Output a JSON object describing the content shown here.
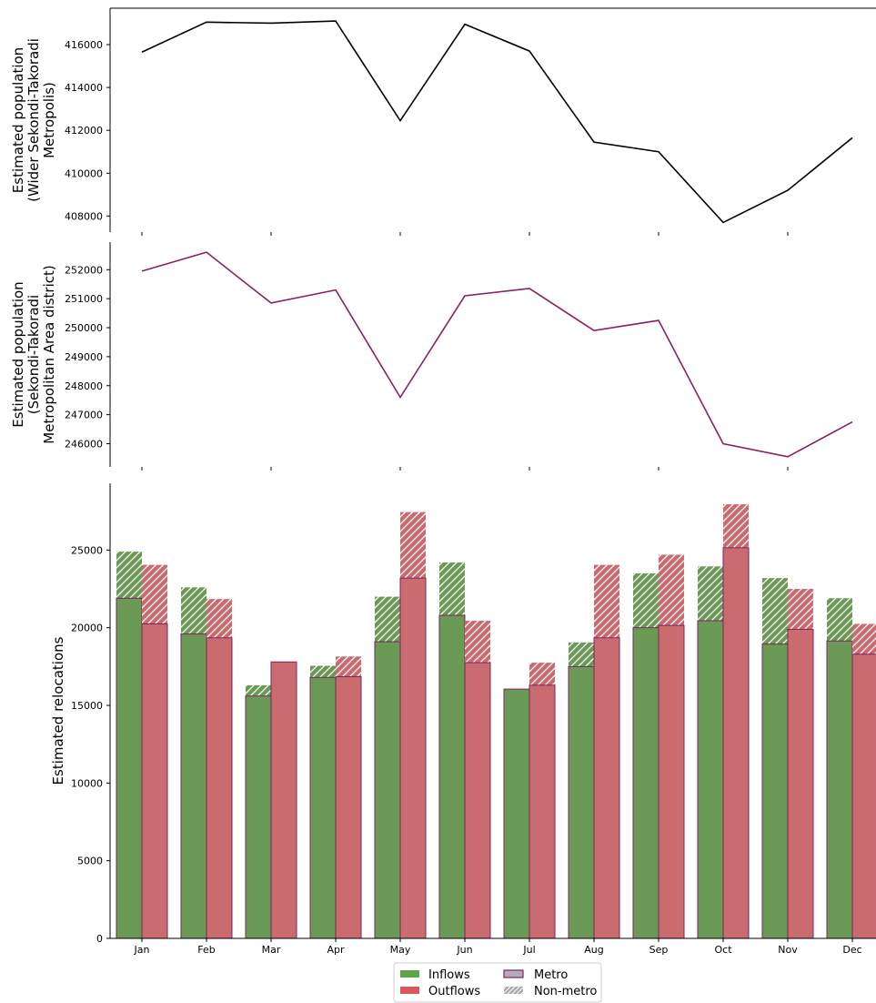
{
  "chart_data": [
    {
      "type": "line",
      "xlabel": "",
      "ylabel": [
        "Estimated population",
        "(Wider Sekondi-Takoradi",
        "Metropolis)"
      ],
      "x": [
        "Jan",
        "Feb",
        "Mar",
        "Apr",
        "May",
        "Jun",
        "Jul",
        "Aug",
        "Sep",
        "Oct",
        "Nov",
        "Dec"
      ],
      "series": [
        {
          "values": [
            415650,
            417050,
            417000,
            417100,
            412450,
            416950,
            415700,
            411450,
            411000,
            407700,
            409200,
            411650
          ],
          "color": "#000000"
        }
      ],
      "yticks": [
        408000,
        410000,
        412000,
        414000,
        416000
      ],
      "ylim": [
        407250,
        417700
      ],
      "grid": false
    },
    {
      "type": "line",
      "xlabel": "",
      "ylabel": [
        "Estimated population",
        "(Sekondi-Takoradi",
        "Metropolitan Area district)"
      ],
      "x": [
        "Jan",
        "Feb",
        "Mar",
        "Apr",
        "May",
        "Jun",
        "Jul",
        "Aug",
        "Sep",
        "Oct",
        "Nov",
        "Dec"
      ],
      "series": [
        {
          "values": [
            251950,
            252600,
            250850,
            251300,
            247600,
            251100,
            251350,
            249900,
            250250,
            246000,
            245550,
            246750
          ],
          "color": "#8b2060"
        }
      ],
      "yticks": [
        246000,
        247000,
        248000,
        249000,
        250000,
        251000,
        252000
      ],
      "ylim": [
        245200,
        252950
      ],
      "grid": false
    },
    {
      "type": "bar",
      "xlabel": "",
      "ylabel": "Estimated relocations",
      "categories": [
        "Jan",
        "Feb",
        "Mar",
        "Apr",
        "May",
        "Jun",
        "Jul",
        "Aug",
        "Sep",
        "Oct",
        "Nov",
        "Dec"
      ],
      "series": [
        {
          "name": "Inflows",
          "metro": [
            21900,
            19600,
            15600,
            16800,
            19100,
            20800,
            16050,
            17500,
            20000,
            20450,
            18950,
            19150
          ],
          "total": [
            24900,
            22600,
            16300,
            17550,
            22000,
            24200,
            16050,
            19050,
            23500,
            23950,
            23200,
            21900
          ],
          "color": "#6a9a55"
        },
        {
          "name": "Outflows",
          "metro": [
            20250,
            19350,
            17800,
            16850,
            23200,
            17750,
            16300,
            19350,
            20150,
            25150,
            19900,
            18300
          ],
          "total": [
            24050,
            21850,
            17800,
            18150,
            27450,
            20450,
            17750,
            24050,
            24700,
            27950,
            22500,
            20250
          ],
          "color": "#c96b6f"
        }
      ],
      "yticks": [
        0,
        5000,
        10000,
        15000,
        20000,
        25000
      ],
      "ylim": [
        0,
        29300
      ],
      "edge_color": "#7b2457",
      "grid": false,
      "legend": {
        "position": "bottom-center",
        "entries": [
          {
            "label": "Inflows",
            "kind": "solid",
            "color": "#5fa34a"
          },
          {
            "label": "Outflows",
            "kind": "solid",
            "color": "#d9595c"
          },
          {
            "label": "Metro",
            "kind": "outline",
            "color": "#b5aab8",
            "edge": "#7b2457"
          },
          {
            "label": "Non-metro",
            "kind": "hatch",
            "color": "#aaaaaa"
          }
        ]
      }
    }
  ]
}
